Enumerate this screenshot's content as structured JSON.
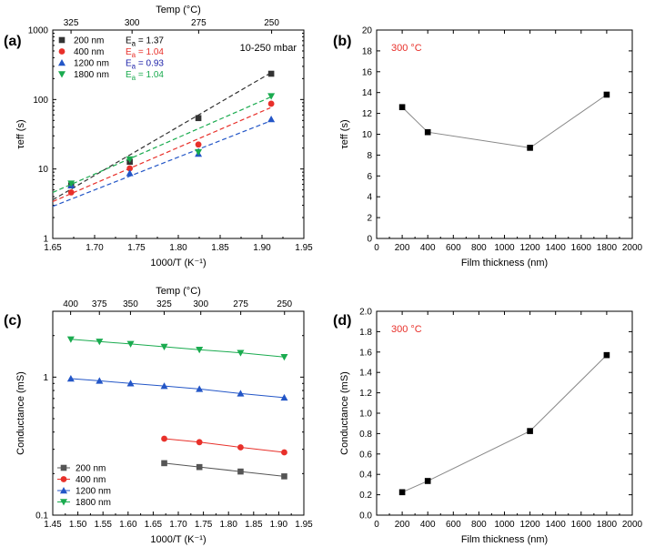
{
  "chart_data": [
    {
      "id": "a",
      "type": "scatter",
      "panel_label": "(a)",
      "xlabel": "1000/T (K⁻¹)",
      "ylabel": "τeff (s)",
      "yscale": "log",
      "xlim": [
        1.65,
        1.95
      ],
      "ylim": [
        1,
        1000
      ],
      "xticks": [
        "1.65",
        "1.70",
        "1.75",
        "1.80",
        "1.85",
        "1.90",
        "1.95"
      ],
      "yticks": [
        "1",
        "10",
        "100",
        "1000"
      ],
      "top_axis": {
        "label": "Temp (°C)",
        "ticks": [
          "325",
          "300",
          "275",
          "250"
        ],
        "values": [
          325,
          300,
          275,
          250
        ]
      },
      "annotation": "10-250 mbar",
      "x": [
        1.672,
        1.742,
        1.824,
        1.911
      ],
      "series": [
        {
          "name": "200 nm",
          "color": "#333333",
          "marker": "square",
          "values": [
            5.8,
            12.7,
            54,
            235
          ],
          "fit": [
            3.6,
            240
          ],
          "ea": "1.37"
        },
        {
          "name": "400 nm",
          "color": "#e8302a",
          "marker": "circle",
          "values": [
            4.6,
            10.2,
            22.5,
            87
          ],
          "fit": [
            3.4,
            76
          ],
          "ea": "1.04"
        },
        {
          "name": "1200 nm",
          "color": "#2356c7",
          "marker": "triangle-up",
          "values": [
            5.8,
            8.7,
            16.5,
            52
          ],
          "fit": [
            2.9,
            49
          ],
          "ea": "0.93"
        },
        {
          "name": "1800 nm",
          "color": "#1aab4f",
          "marker": "triangle-down",
          "values": [
            6.2,
            13.8,
            17.5,
            112
          ],
          "fit": [
            4.6,
            108
          ],
          "ea": "1.04"
        }
      ],
      "ea_label": "E",
      "ea_sub": "a",
      "ea_colors": [
        "#000000",
        "#e8302a",
        "#1a1fa8",
        "#1aab4f"
      ]
    },
    {
      "id": "b",
      "type": "line",
      "panel_label": "(b)",
      "xlabel": "Film thickness (nm)",
      "ylabel": "τeff (s)",
      "xlim": [
        0,
        2000
      ],
      "ylim": [
        0,
        20
      ],
      "xticks": [
        "0",
        "200",
        "400",
        "600",
        "800",
        "1000",
        "1200",
        "1400",
        "1600",
        "1800",
        "2000"
      ],
      "yticks": [
        "0",
        "2",
        "4",
        "6",
        "8",
        "10",
        "12",
        "14",
        "16",
        "18",
        "20"
      ],
      "annotation": "300 °C",
      "x": [
        200,
        400,
        1200,
        1800
      ],
      "values": [
        12.6,
        10.2,
        8.7,
        13.8
      ]
    },
    {
      "id": "c",
      "type": "scatter",
      "panel_label": "(c)",
      "xlabel": "1000/T (K⁻¹)",
      "ylabel": "Conductance (mS)",
      "yscale": "log",
      "xlim": [
        1.45,
        1.95
      ],
      "ylim": [
        0.1,
        3
      ],
      "xticks": [
        "1.45",
        "1.50",
        "1.55",
        "1.60",
        "1.65",
        "1.70",
        "1.75",
        "1.80",
        "1.85",
        "1.90",
        "1.95"
      ],
      "yticks": [
        "0.1",
        "1"
      ],
      "top_axis": {
        "label": "Temp (°C)",
        "ticks": [
          "400",
          "375",
          "350",
          "325",
          "300",
          "275",
          "250"
        ],
        "values": [
          400,
          375,
          350,
          325,
          300,
          275,
          250
        ]
      },
      "series": [
        {
          "name": "200 nm",
          "color": "#555555",
          "marker": "square",
          "x": [
            1.672,
            1.742,
            1.824,
            1.911
          ],
          "values": [
            0.238,
            0.223,
            0.207,
            0.191
          ]
        },
        {
          "name": "400 nm",
          "color": "#e8302a",
          "marker": "circle",
          "x": [
            1.672,
            1.742,
            1.824,
            1.911
          ],
          "values": [
            0.358,
            0.338,
            0.31,
            0.285
          ]
        },
        {
          "name": "1200 nm",
          "color": "#2356c7",
          "marker": "triangle-up",
          "x": [
            1.486,
            1.543,
            1.605,
            1.672,
            1.742,
            1.824,
            1.911
          ],
          "values": [
            0.975,
            0.94,
            0.9,
            0.862,
            0.82,
            0.76,
            0.71
          ]
        },
        {
          "name": "1800 nm",
          "color": "#1aab4f",
          "marker": "triangle-down",
          "x": [
            1.486,
            1.543,
            1.605,
            1.672,
            1.742,
            1.824,
            1.911
          ],
          "values": [
            1.88,
            1.81,
            1.74,
            1.66,
            1.58,
            1.5,
            1.4
          ]
        }
      ]
    },
    {
      "id": "d",
      "type": "line",
      "panel_label": "(d)",
      "xlabel": "Film thickness (nm)",
      "ylabel": "Conductance (mS)",
      "xlim": [
        0,
        2000
      ],
      "ylim": [
        0,
        2
      ],
      "xticks": [
        "0",
        "200",
        "400",
        "600",
        "800",
        "1000",
        "1200",
        "1400",
        "1600",
        "1800",
        "2000"
      ],
      "yticks": [
        "0.0",
        "0.2",
        "0.4",
        "0.6",
        "0.8",
        "1.0",
        "1.2",
        "1.4",
        "1.6",
        "1.8",
        "2.0"
      ],
      "annotation": "300 °C",
      "x": [
        200,
        400,
        1200,
        1800
      ],
      "values": [
        0.225,
        0.335,
        0.825,
        1.57
      ]
    }
  ]
}
